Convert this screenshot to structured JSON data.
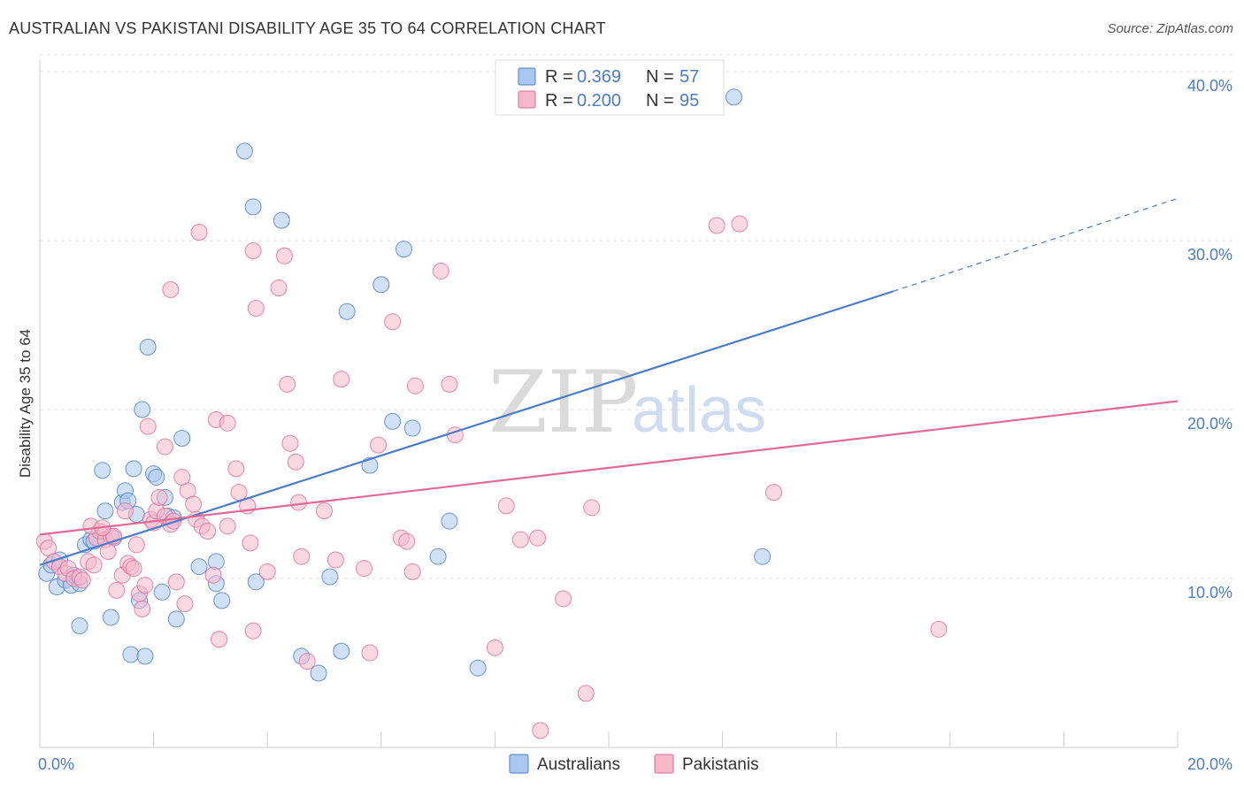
{
  "header": {
    "title": "AUSTRALIAN VS PAKISTANI DISABILITY AGE 35 TO 64 CORRELATION CHART",
    "source": "Source: ZipAtlas.com"
  },
  "watermark": {
    "zip": "ZIP",
    "atlas": "atlas"
  },
  "colors": {
    "australians": "#4a7cc8",
    "australians_fill": "#aac8ef",
    "pakistanis": "#e06a96",
    "pakistanis_fill": "#f5b8cb",
    "grid": "#dddddd",
    "axis_text": "#4a7cc8"
  },
  "legend": {
    "rows": [
      {
        "r_label": "R = ",
        "r_value": "0.369",
        "n_label": "N = ",
        "n_value": "57",
        "series": "australians"
      },
      {
        "r_label": "R = ",
        "r_value": "0.200",
        "n_label": "N = ",
        "n_value": "95",
        "series": "pakistanis"
      }
    ]
  },
  "bottom_legend": [
    "Australians",
    "Pakistanis"
  ],
  "chart_data": {
    "type": "scatter",
    "title": "AUSTRALIAN VS PAKISTANI DISABILITY AGE 35 TO 64 CORRELATION CHART",
    "xlabel": "",
    "ylabel": "Disability Age 35 to 64",
    "xlim": [
      0,
      20
    ],
    "ylim": [
      0,
      41
    ],
    "x_tick_labels": [
      "0.0%",
      "20.0%"
    ],
    "y_ticks": [
      10,
      20,
      30,
      40
    ],
    "y_tick_labels": [
      "10.0%",
      "20.0%",
      "30.0%",
      "40.0%"
    ],
    "grid": true,
    "series": [
      {
        "name": "Australians",
        "r": 0.369,
        "n": 57,
        "trend": {
          "x0": 0,
          "y0": 10.8,
          "x1": 15.0,
          "y1": 27.0,
          "dash_to_x": 20.0,
          "dash_to_y": 32.5
        },
        "points": [
          [
            0.12,
            10.3
          ],
          [
            0.3,
            9.5
          ],
          [
            0.45,
            9.9
          ],
          [
            0.55,
            9.6
          ],
          [
            0.7,
            9.7
          ],
          [
            0.2,
            10.8
          ],
          [
            0.35,
            11.1
          ],
          [
            0.6,
            10.2
          ],
          [
            0.8,
            12.0
          ],
          [
            0.9,
            12.3
          ],
          [
            0.95,
            12.2
          ],
          [
            1.15,
            14.0
          ],
          [
            1.45,
            14.5
          ],
          [
            1.1,
            16.4
          ],
          [
            1.5,
            15.2
          ],
          [
            1.55,
            14.6
          ],
          [
            1.7,
            13.8
          ],
          [
            1.65,
            16.5
          ],
          [
            2.0,
            16.2
          ],
          [
            2.05,
            16.0
          ],
          [
            2.2,
            14.8
          ],
          [
            2.25,
            13.7
          ],
          [
            2.35,
            13.6
          ],
          [
            1.8,
            20.0
          ],
          [
            1.9,
            23.7
          ],
          [
            2.5,
            18.3
          ],
          [
            2.8,
            10.7
          ],
          [
            3.1,
            9.7
          ],
          [
            2.4,
            7.6
          ],
          [
            2.15,
            9.2
          ],
          [
            1.75,
            8.7
          ],
          [
            1.25,
            7.7
          ],
          [
            0.7,
            7.2
          ],
          [
            1.6,
            5.5
          ],
          [
            1.85,
            5.4
          ],
          [
            3.2,
            8.7
          ],
          [
            3.8,
            9.8
          ],
          [
            3.6,
            35.3
          ],
          [
            3.75,
            32.0
          ],
          [
            4.25,
            31.2
          ],
          [
            4.6,
            5.4
          ],
          [
            4.9,
            4.4
          ],
          [
            5.1,
            10.1
          ],
          [
            5.3,
            5.7
          ],
          [
            5.4,
            25.8
          ],
          [
            5.8,
            16.7
          ],
          [
            6.0,
            27.4
          ],
          [
            6.2,
            19.3
          ],
          [
            6.4,
            29.5
          ],
          [
            6.55,
            18.9
          ],
          [
            7.0,
            11.3
          ],
          [
            7.2,
            13.4
          ],
          [
            7.7,
            4.7
          ],
          [
            12.2,
            38.5
          ],
          [
            12.7,
            11.3
          ],
          [
            3.1,
            11.0
          ],
          [
            1.3,
            12.4
          ]
        ]
      },
      {
        "name": "Pakistanis",
        "r": 0.2,
        "n": 95,
        "trend": {
          "x0": 0,
          "y0": 12.6,
          "x1": 20.0,
          "y1": 20.5
        },
        "points": [
          [
            0.08,
            12.2
          ],
          [
            0.15,
            11.8
          ],
          [
            0.25,
            11.0
          ],
          [
            0.35,
            10.7
          ],
          [
            0.45,
            10.3
          ],
          [
            0.5,
            10.6
          ],
          [
            0.6,
            10.0
          ],
          [
            0.7,
            10.1
          ],
          [
            0.75,
            9.9
          ],
          [
            0.85,
            11.0
          ],
          [
            0.95,
            10.8
          ],
          [
            1.0,
            12.4
          ],
          [
            1.05,
            12.8
          ],
          [
            1.15,
            12.3
          ],
          [
            1.2,
            11.6
          ],
          [
            1.25,
            12.5
          ],
          [
            1.3,
            12.5
          ],
          [
            1.35,
            9.3
          ],
          [
            1.45,
            10.2
          ],
          [
            1.55,
            10.9
          ],
          [
            1.6,
            10.7
          ],
          [
            1.65,
            10.6
          ],
          [
            1.7,
            12.0
          ],
          [
            1.75,
            9.1
          ],
          [
            1.8,
            8.2
          ],
          [
            1.85,
            9.6
          ],
          [
            1.95,
            13.5
          ],
          [
            2.0,
            13.3
          ],
          [
            2.05,
            14.0
          ],
          [
            2.1,
            14.8
          ],
          [
            2.2,
            13.7
          ],
          [
            2.3,
            13.2
          ],
          [
            2.35,
            13.4
          ],
          [
            2.4,
            9.8
          ],
          [
            2.55,
            8.5
          ],
          [
            2.6,
            15.2
          ],
          [
            2.7,
            14.4
          ],
          [
            2.75,
            13.5
          ],
          [
            2.85,
            13.1
          ],
          [
            2.95,
            12.8
          ],
          [
            3.05,
            10.2
          ],
          [
            3.1,
            19.4
          ],
          [
            3.15,
            6.4
          ],
          [
            3.3,
            19.2
          ],
          [
            3.45,
            16.5
          ],
          [
            3.5,
            15.1
          ],
          [
            3.65,
            14.3
          ],
          [
            3.7,
            12.1
          ],
          [
            3.75,
            6.9
          ],
          [
            3.8,
            26.0
          ],
          [
            3.75,
            29.4
          ],
          [
            2.8,
            30.5
          ],
          [
            2.3,
            27.1
          ],
          [
            2.2,
            17.8
          ],
          [
            1.9,
            19.0
          ],
          [
            4.3,
            29.1
          ],
          [
            4.2,
            27.2
          ],
          [
            4.35,
            21.5
          ],
          [
            4.4,
            18.0
          ],
          [
            4.5,
            16.9
          ],
          [
            4.55,
            14.5
          ],
          [
            4.6,
            11.3
          ],
          [
            4.7,
            5.1
          ],
          [
            5.0,
            14.0
          ],
          [
            5.2,
            11.1
          ],
          [
            5.3,
            21.8
          ],
          [
            5.7,
            10.6
          ],
          [
            5.8,
            5.6
          ],
          [
            5.95,
            17.9
          ],
          [
            6.2,
            25.2
          ],
          [
            6.35,
            12.4
          ],
          [
            6.45,
            12.2
          ],
          [
            6.55,
            10.4
          ],
          [
            6.6,
            21.4
          ],
          [
            7.05,
            28.2
          ],
          [
            7.2,
            21.5
          ],
          [
            7.3,
            18.5
          ],
          [
            8.0,
            5.9
          ],
          [
            8.2,
            14.3
          ],
          [
            8.45,
            12.3
          ],
          [
            8.75,
            12.4
          ],
          [
            8.8,
            1.0
          ],
          [
            9.2,
            8.8
          ],
          [
            9.6,
            3.2
          ],
          [
            9.7,
            14.2
          ],
          [
            11.9,
            30.9
          ],
          [
            12.3,
            31.0
          ],
          [
            12.9,
            15.1
          ],
          [
            15.8,
            7.0
          ],
          [
            0.9,
            13.1
          ],
          [
            1.5,
            14.0
          ],
          [
            2.5,
            16.0
          ],
          [
            4.0,
            10.4
          ],
          [
            1.1,
            13.0
          ],
          [
            3.3,
            13.1
          ]
        ]
      }
    ]
  }
}
